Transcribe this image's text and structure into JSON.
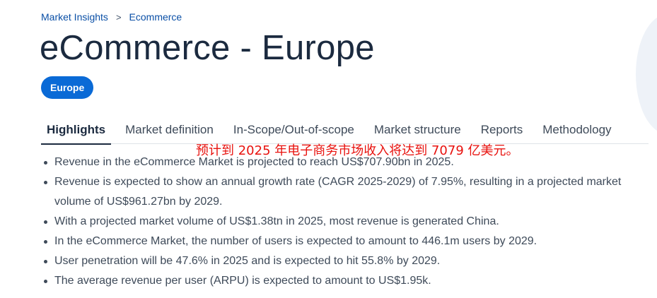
{
  "breadcrumb": {
    "items": [
      "Market Insights",
      "Ecommerce"
    ],
    "separator": ">"
  },
  "page_title": "eCommerce - Europe",
  "region_pill": "Europe",
  "tabs": [
    {
      "label": "Highlights",
      "active": true
    },
    {
      "label": "Market definition",
      "active": false
    },
    {
      "label": "In-Scope/Out-of-scope",
      "active": false
    },
    {
      "label": "Market structure",
      "active": false
    },
    {
      "label": "Reports",
      "active": false
    },
    {
      "label": "Methodology",
      "active": false
    }
  ],
  "overlay_note": "预计到 2025 年电子商务市场收入将达到 7079 亿美元。",
  "highlights": [
    "Revenue in the eCommerce Market is projected to reach US$707.90bn in 2025.",
    "Revenue is expected to show an annual growth rate (CAGR 2025-2029) of 7.95%, resulting in a projected market volume of US$961.27bn by 2029.",
    "With a projected market volume of US$1.38tn in 2025, most revenue is generated China.",
    "In the eCommerce Market, the number of users is expected to amount to 446.1m users by 2029.",
    "User penetration will be 47.6% in 2025 and is expected to hit 55.8% by 2029.",
    "The average revenue per user (ARPU) is expected to amount to US$1.95k."
  ],
  "colors": {
    "link": "#0a4fa6",
    "pill": "#0a6ad6",
    "title": "#1b2a3f",
    "body_text": "#3e4a59",
    "overlay_note": "#e8120e"
  }
}
